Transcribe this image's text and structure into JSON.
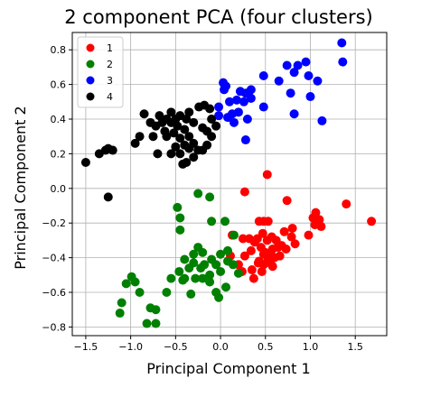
{
  "chart_data": {
    "type": "scatter",
    "title": "2 component PCA (four clusters)",
    "xlabel": "Principal Component 1",
    "ylabel": "Principal Component 2",
    "xlim": [
      -1.65,
      1.85
    ],
    "ylim": [
      -0.85,
      0.9
    ],
    "xticks": [
      -1.5,
      -1.0,
      -0.5,
      0.0,
      0.5,
      1.0,
      1.5
    ],
    "xtick_labels": [
      "−1.5",
      "−1.0",
      "−0.5",
      "0.0",
      "0.5",
      "1.0",
      "1.5"
    ],
    "yticks": [
      -0.8,
      -0.6,
      -0.4,
      -0.2,
      0.0,
      0.2,
      0.4,
      0.6,
      0.8
    ],
    "ytick_labels": [
      "−0.8",
      "−0.6",
      "−0.4",
      "−0.2",
      "0.0",
      "0.2",
      "0.4",
      "0.6",
      "0.8"
    ],
    "grid": true,
    "legend_position": "top-left",
    "series": [
      {
        "name": "1",
        "color": "#ff0000",
        "points": [
          [
            0.52,
            0.08
          ],
          [
            0.27,
            -0.02
          ],
          [
            0.74,
            -0.07
          ],
          [
            0.48,
            -0.19
          ],
          [
            0.53,
            -0.19
          ],
          [
            0.43,
            -0.19
          ],
          [
            0.13,
            -0.27
          ],
          [
            0.25,
            -0.29
          ],
          [
            0.32,
            -0.29
          ],
          [
            0.41,
            -0.29
          ],
          [
            0.47,
            -0.26
          ],
          [
            0.52,
            -0.3
          ],
          [
            0.57,
            -0.28
          ],
          [
            0.62,
            -0.3
          ],
          [
            0.71,
            -0.25
          ],
          [
            0.8,
            -0.23
          ],
          [
            0.79,
            -0.28
          ],
          [
            0.68,
            -0.33
          ],
          [
            0.58,
            -0.35
          ],
          [
            0.5,
            -0.37
          ],
          [
            0.45,
            -0.34
          ],
          [
            0.38,
            -0.31
          ],
          [
            0.34,
            -0.36
          ],
          [
            0.27,
            -0.39
          ],
          [
            0.11,
            -0.39
          ],
          [
            0.2,
            -0.44
          ],
          [
            0.24,
            -0.48
          ],
          [
            0.35,
            -0.47
          ],
          [
            0.43,
            -0.42
          ],
          [
            0.48,
            -0.44
          ],
          [
            0.55,
            -0.43
          ],
          [
            0.6,
            -0.4
          ],
          [
            0.66,
            -0.39
          ],
          [
            0.73,
            -0.35
          ],
          [
            0.83,
            -0.32
          ],
          [
            0.98,
            -0.27
          ],
          [
            1.03,
            -0.17
          ],
          [
            1.05,
            -0.21
          ],
          [
            1.06,
            -0.14
          ],
          [
            1.1,
            -0.18
          ],
          [
            1.12,
            -0.22
          ],
          [
            1.4,
            -0.09
          ],
          [
            1.68,
            -0.19
          ],
          [
            0.37,
            -0.52
          ],
          [
            0.46,
            -0.48
          ],
          [
            0.42,
            -0.43
          ],
          [
            0.57,
            -0.39
          ],
          [
            0.64,
            -0.34
          ],
          [
            0.58,
            -0.45
          ],
          [
            0.48,
            -0.38
          ],
          [
            0.53,
            -0.41
          ]
        ]
      },
      {
        "name": "2",
        "color": "#008000",
        "points": [
          [
            -0.25,
            -0.03
          ],
          [
            -0.12,
            -0.05
          ],
          [
            -0.48,
            -0.11
          ],
          [
            -0.45,
            -0.17
          ],
          [
            -0.1,
            -0.19
          ],
          [
            -0.45,
            -0.24
          ],
          [
            0.05,
            -0.19
          ],
          [
            0.15,
            -0.27
          ],
          [
            -0.25,
            -0.34
          ],
          [
            -0.3,
            -0.38
          ],
          [
            -0.2,
            -0.37
          ],
          [
            -0.4,
            -0.41
          ],
          [
            -0.3,
            -0.43
          ],
          [
            -0.18,
            -0.44
          ],
          [
            -0.1,
            -0.41
          ],
          [
            0.0,
            -0.38
          ],
          [
            0.08,
            -0.42
          ],
          [
            0.14,
            -0.44
          ],
          [
            0.2,
            -0.49
          ],
          [
            -0.05,
            -0.44
          ],
          [
            -0.22,
            -0.46
          ],
          [
            -0.35,
            -0.46
          ],
          [
            -0.46,
            -0.48
          ],
          [
            -0.55,
            -0.52
          ],
          [
            -0.4,
            -0.52
          ],
          [
            -0.2,
            -0.52
          ],
          [
            -0.12,
            -0.54
          ],
          [
            0.0,
            -0.48
          ],
          [
            -0.05,
            -0.6
          ],
          [
            0.06,
            -0.57
          ],
          [
            -0.33,
            -0.61
          ],
          [
            -0.02,
            -0.63
          ],
          [
            -0.12,
            -0.5
          ],
          [
            -0.28,
            -0.52
          ],
          [
            -0.99,
            -0.51
          ],
          [
            -1.05,
            -0.55
          ],
          [
            -0.95,
            -0.54
          ],
          [
            -1.1,
            -0.66
          ],
          [
            -1.12,
            -0.72
          ],
          [
            -0.72,
            -0.7
          ],
          [
            -0.78,
            -0.69
          ],
          [
            -0.82,
            -0.78
          ],
          [
            -0.72,
            -0.78
          ],
          [
            -0.42,
            -0.53
          ],
          [
            0.08,
            -0.36
          ],
          [
            -0.6,
            -0.6
          ],
          [
            -0.9,
            -0.6
          ]
        ]
      },
      {
        "name": "3",
        "color": "#0000ff",
        "points": [
          [
            1.35,
            0.84
          ],
          [
            0.74,
            0.71
          ],
          [
            0.86,
            0.71
          ],
          [
            0.95,
            0.73
          ],
          [
            0.82,
            0.67
          ],
          [
            0.98,
            0.65
          ],
          [
            1.36,
            0.73
          ],
          [
            1.08,
            0.62
          ],
          [
            0.65,
            0.62
          ],
          [
            0.48,
            0.65
          ],
          [
            0.03,
            0.61
          ],
          [
            0.06,
            0.59
          ],
          [
            0.22,
            0.56
          ],
          [
            0.28,
            0.55
          ],
          [
            0.26,
            0.5
          ],
          [
            0.31,
            0.55
          ],
          [
            0.34,
            0.57
          ],
          [
            0.34,
            0.52
          ],
          [
            0.1,
            0.5
          ],
          [
            0.2,
            0.44
          ],
          [
            0.15,
            0.38
          ],
          [
            0.48,
            0.47
          ],
          [
            0.78,
            0.55
          ],
          [
            0.82,
            0.43
          ],
          [
            1.0,
            0.53
          ],
          [
            1.13,
            0.39
          ],
          [
            0.3,
            0.4
          ],
          [
            0.28,
            0.28
          ],
          [
            -0.02,
            0.47
          ],
          [
            -0.02,
            0.42
          ],
          [
            0.08,
            0.41
          ],
          [
            0.13,
            0.43
          ],
          [
            0.04,
            0.57
          ],
          [
            0.18,
            0.51
          ]
        ]
      },
      {
        "name": "4",
        "color": "#000000",
        "points": [
          [
            -1.5,
            0.15
          ],
          [
            -1.35,
            0.2
          ],
          [
            -1.25,
            0.23
          ],
          [
            -1.2,
            0.22
          ],
          [
            -1.28,
            0.22
          ],
          [
            -1.25,
            -0.05
          ],
          [
            -0.95,
            0.26
          ],
          [
            -0.85,
            0.43
          ],
          [
            -0.78,
            0.38
          ],
          [
            -0.72,
            0.36
          ],
          [
            -0.65,
            0.38
          ],
          [
            -0.6,
            0.4
          ],
          [
            -0.55,
            0.38
          ],
          [
            -0.5,
            0.4
          ],
          [
            -0.45,
            0.42
          ],
          [
            -0.38,
            0.4
          ],
          [
            -0.3,
            0.38
          ],
          [
            -0.24,
            0.47
          ],
          [
            -0.18,
            0.48
          ],
          [
            -0.12,
            0.46
          ],
          [
            -0.1,
            0.4
          ],
          [
            -0.2,
            0.35
          ],
          [
            -0.15,
            0.33
          ],
          [
            -0.1,
            0.3
          ],
          [
            -0.05,
            0.36
          ],
          [
            -0.4,
            0.34
          ],
          [
            -0.52,
            0.32
          ],
          [
            -0.6,
            0.3
          ],
          [
            -0.45,
            0.29
          ],
          [
            -0.4,
            0.25
          ],
          [
            -0.5,
            0.24
          ],
          [
            -0.55,
            0.2
          ],
          [
            -0.7,
            0.2
          ],
          [
            -0.45,
            0.2
          ],
          [
            -0.35,
            0.23
          ],
          [
            -0.3,
            0.26
          ],
          [
            -0.25,
            0.22
          ],
          [
            -0.2,
            0.22
          ],
          [
            -0.15,
            0.25
          ],
          [
            -0.42,
            0.14
          ],
          [
            -0.38,
            0.15
          ],
          [
            -0.3,
            0.18
          ],
          [
            -0.75,
            0.3
          ],
          [
            -0.9,
            0.3
          ],
          [
            -0.55,
            0.44
          ],
          [
            -0.35,
            0.44
          ],
          [
            -0.48,
            0.36
          ],
          [
            -0.68,
            0.42
          ],
          [
            -0.62,
            0.33
          ],
          [
            -0.35,
            0.3
          ]
        ]
      }
    ]
  }
}
